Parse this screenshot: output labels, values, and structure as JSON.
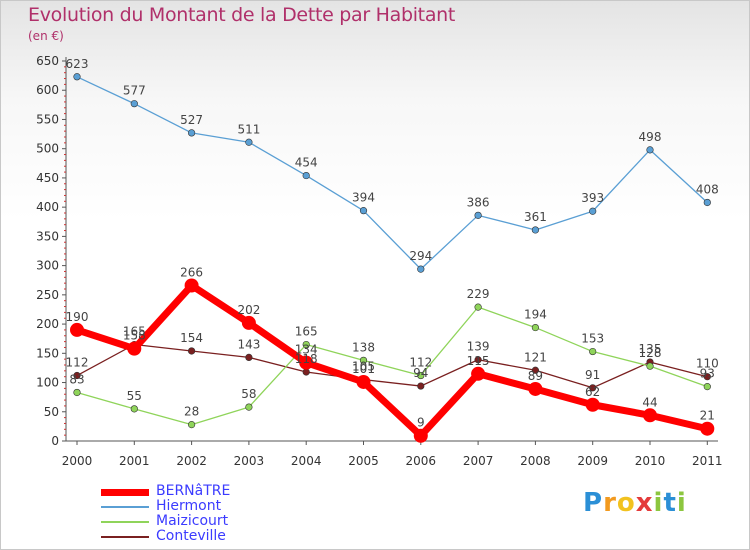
{
  "header": {
    "title": "Evolution du Montant de la Dette par Habitant",
    "subtitle": "(en €)"
  },
  "logo": {
    "letters": [
      "P",
      "r",
      "o",
      "x",
      "i",
      "t",
      "i"
    ],
    "colors": [
      "#2b8fd6",
      "#f29a1f",
      "#f2c21f",
      "#e43b3b",
      "#8cc63f",
      "#2b8fd6",
      "#8cc63f"
    ]
  },
  "chart_data": {
    "type": "line",
    "x": [
      "2000",
      "2001",
      "2002",
      "2003",
      "2004",
      "2005",
      "2006",
      "2007",
      "2008",
      "2009",
      "2010",
      "2011"
    ],
    "ylim": [
      0,
      650
    ],
    "yticks": [
      0,
      50,
      100,
      150,
      200,
      250,
      300,
      350,
      400,
      450,
      500,
      550,
      600,
      650
    ],
    "grid": false,
    "legend_position": "bottom-left",
    "series": [
      {
        "name": "BERNâTRE",
        "color": "#ff0000",
        "values": [
          190,
          158,
          266,
          202,
          134,
          101,
          9,
          115,
          89,
          62,
          44,
          21
        ]
      },
      {
        "name": "Hiermont",
        "color": "#5a9fd4",
        "values": [
          623,
          577,
          527,
          511,
          454,
          394,
          294,
          386,
          361,
          393,
          498,
          408
        ]
      },
      {
        "name": "Maizicourt",
        "color": "#8fd45a",
        "values": [
          83,
          55,
          28,
          58,
          165,
          138,
          112,
          229,
          194,
          153,
          128,
          93
        ]
      },
      {
        "name": "Conteville",
        "color": "#7a2020",
        "values": [
          112,
          165,
          154,
          143,
          118,
          105,
          94,
          139,
          121,
          91,
          135,
          110
        ]
      }
    ]
  }
}
